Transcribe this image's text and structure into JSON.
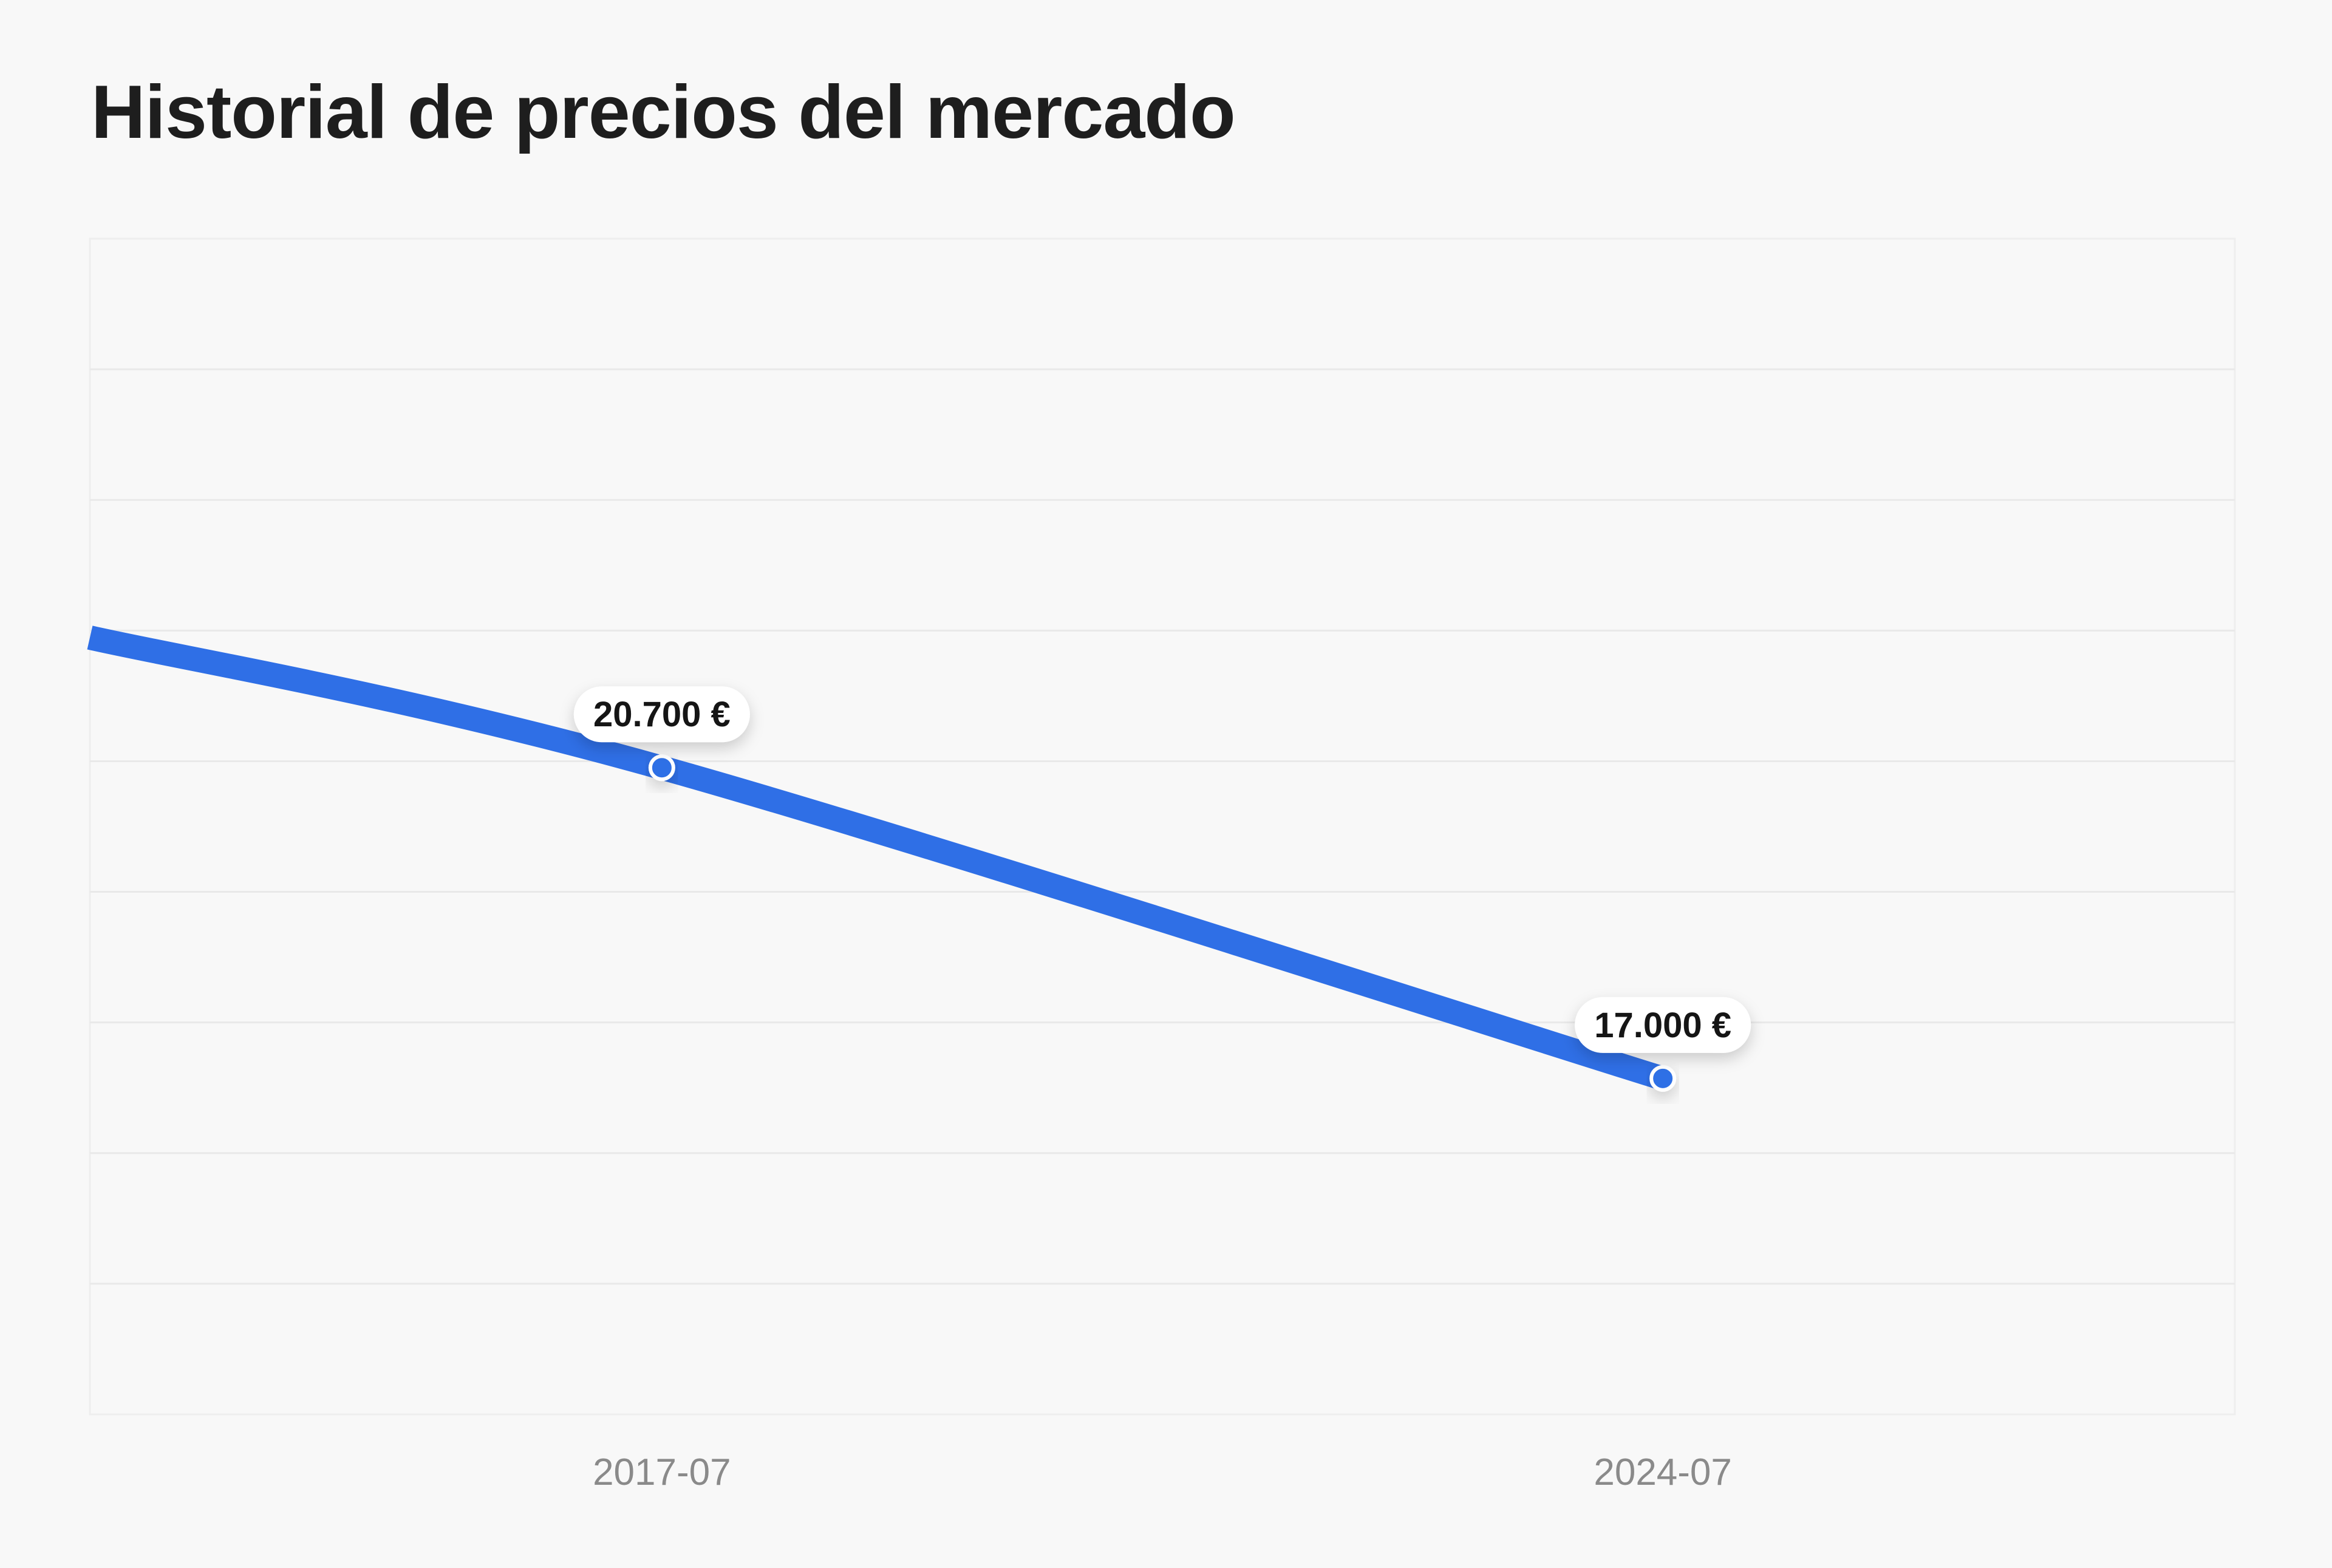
{
  "title": "Historial de precios del mercado",
  "colors": {
    "background": "#f8f8f8",
    "line": "#2f6fe6",
    "grid": "#e9e9e9",
    "title": "#1e1e1e",
    "tick_label": "#8a8a8a"
  },
  "chart_data": {
    "type": "line",
    "title": "Historial de precios del mercado",
    "xlabel": "",
    "ylabel": "",
    "grid": true,
    "x_tick_labels": [
      "2017-07",
      "2024-07"
    ],
    "xlim": [
      "2013-07",
      "2028-07"
    ],
    "ylim": [
      13000,
      27000
    ],
    "series": [
      {
        "name": "",
        "x": [
          "2013-07",
          "2017-07",
          "2024-07"
        ],
        "y": [
          22250,
          20700,
          17000
        ],
        "markers": [
          "2017-07",
          "2024-07"
        ],
        "data_labels": [
          "",
          "20.700 €",
          "17.000 €"
        ]
      }
    ]
  }
}
